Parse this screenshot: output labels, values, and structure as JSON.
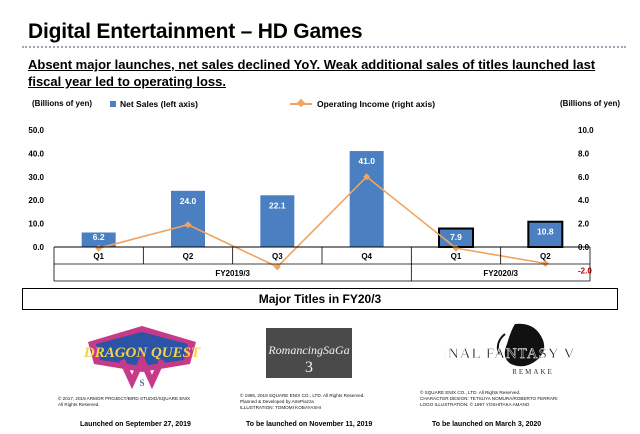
{
  "page": {
    "title": "Digital Entertainment – HD Games",
    "subtitle": "Absent major launches, net sales declined YoY. Weak additional sales of titles launched last fiscal year led to operating loss.",
    "y_unit_left": "(Billions of yen)",
    "y_unit_right": "(Billions of yen)",
    "major_titles_heading": "Major Titles in FY20/3"
  },
  "chart_data": {
    "type": "bar",
    "categories": [
      "Q1",
      "Q2",
      "Q3",
      "Q4",
      "Q1",
      "Q2"
    ],
    "groups": [
      {
        "label": "FY2019/3",
        "categories": [
          0,
          1,
          2,
          3
        ]
      },
      {
        "label": "FY2020/3",
        "categories": [
          4,
          5
        ]
      }
    ],
    "series": [
      {
        "name": "Net Sales (left axis)",
        "type": "bar",
        "axis": "left",
        "color": "#4a7fc1",
        "values": [
          6.2,
          24.0,
          22.1,
          41.0,
          7.9,
          10.8
        ],
        "data_labels": [
          "6.2",
          "24.0",
          "22.1",
          "41.0",
          "7.9",
          "10.8"
        ]
      },
      {
        "name": "Operating Income (right axis)",
        "type": "line",
        "axis": "right",
        "color": "#f0a460",
        "values": [
          -0.1,
          1.9,
          -1.7,
          6.0,
          -0.1,
          -1.4
        ]
      }
    ],
    "left_axis": {
      "min": 0,
      "max": 50,
      "ticks": [
        "0.0",
        "10.0",
        "20.0",
        "30.0",
        "40.0",
        "50.0"
      ]
    },
    "right_axis": {
      "min": -2,
      "max": 10,
      "ticks": [
        "-2.0",
        "0.0",
        "2.0",
        "4.0",
        "6.0",
        "8.0",
        "10.0"
      ]
    },
    "highlighted_bars": [
      4,
      5
    ],
    "grid": false,
    "legend_position": "top"
  },
  "titles": [
    {
      "logo": "dragon-quest-xi-s-logo",
      "copyright": [
        "© 2017, 2019 ARMOR PROJECT/BIRD STUDIO/SQUARE ENIX",
        "All Rights Reserved."
      ],
      "launch": "Launched on September 27, 2019"
    },
    {
      "logo": "romancing-saga-3-logo",
      "copyright": [
        "© 1995, 2019 SQUARE ENIX CO., LTD. All Rights Reserved.",
        "Planned & Developed by ArtePiazza",
        "ILLUSTRATION: TOMOMI KOBAYASHI"
      ],
      "launch": "To be launched on November 11, 2019"
    },
    {
      "logo": "final-fantasy-vii-remake-logo",
      "copyright": [
        "© SQUARE ENIX CO., LTD. All Rights Reserved.",
        "CHARACTER DESIGN: TETSUYA NOMURA/ROBERTO FERRARI",
        "LOGO ILLUSTRATION: © 1997 YOSHITAKA AMANO"
      ],
      "launch": "To be launched on March 3, 2020"
    }
  ]
}
